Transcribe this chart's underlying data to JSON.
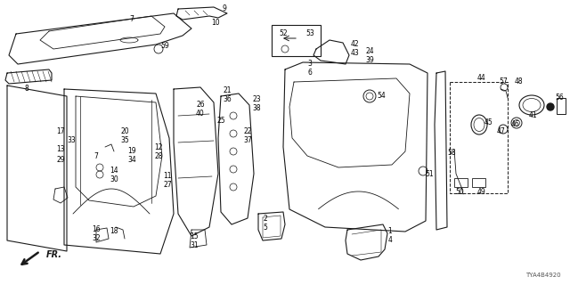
{
  "diagram_code": "TYA4B4920",
  "bg_color": "#ffffff",
  "line_color": "#1a1a1a",
  "label_color": "#000000",
  "fig_width": 6.4,
  "fig_height": 3.2,
  "dpi": 100
}
